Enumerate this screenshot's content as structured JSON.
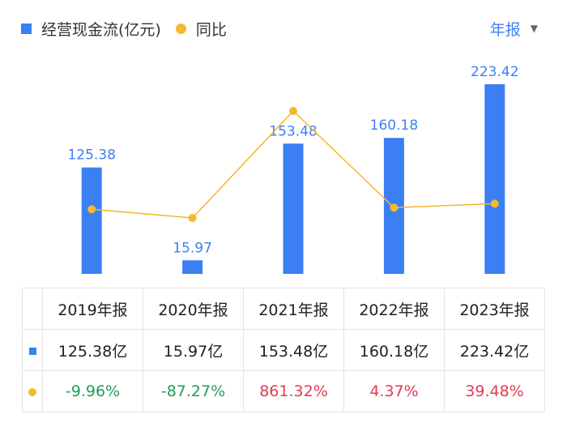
{
  "legend": {
    "bar_label": "经营现金流(亿元)",
    "line_label": "同比"
  },
  "period_selector": {
    "label": "年报",
    "caret": "▼"
  },
  "colors": {
    "bar": "#3b7ff3",
    "line": "#f5b82e",
    "negative": "#1f9e5a",
    "positive": "#e5394f"
  },
  "chart_data": {
    "type": "bar",
    "categories": [
      "2019年报",
      "2020年报",
      "2021年报",
      "2022年报",
      "2023年报"
    ],
    "series": [
      {
        "name": "经营现金流(亿元)",
        "type": "bar",
        "values": [
          125.38,
          15.97,
          153.48,
          160.18,
          223.42
        ],
        "labels": [
          "125.38",
          "15.97",
          "153.48",
          "160.18",
          "223.42"
        ]
      },
      {
        "name": "同比",
        "type": "line",
        "values": [
          -9.96,
          -87.27,
          861.32,
          4.37,
          39.48
        ]
      }
    ],
    "grid": false,
    "legend_position": "top-left"
  },
  "table": {
    "headers": [
      "2019年报",
      "2020年报",
      "2021年报",
      "2022年报",
      "2023年报"
    ],
    "bar_row": [
      "125.38亿",
      "15.97亿",
      "153.48亿",
      "160.18亿",
      "223.42亿"
    ],
    "line_row": [
      "-9.96%",
      "-87.27%",
      "861.32%",
      "4.37%",
      "39.48%"
    ]
  }
}
